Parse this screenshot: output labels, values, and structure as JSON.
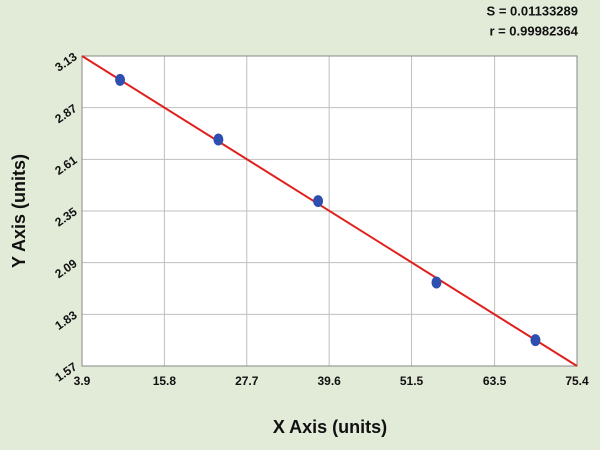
{
  "chart_data": {
    "type": "scatter",
    "xlabel": "X Axis (units)",
    "ylabel": "Y Axis (units)",
    "annotations": [
      "S = 0.01133289",
      "r = 0.99982364"
    ],
    "series": [
      {
        "color": "#2f4fb0",
        "x": [
          9.4,
          23.6,
          38.0,
          55.1,
          69.4
        ],
        "values": [
          3.01,
          2.71,
          2.4,
          1.99,
          1.7
        ]
      }
    ],
    "fit": {
      "color": "#e0201c",
      "x": [
        3.9,
        75.4
      ],
      "values": [
        3.13,
        1.57
      ]
    },
    "xlim": [
      3.9,
      75.4
    ],
    "ylim": [
      1.57,
      3.13
    ],
    "xticks": [
      3.9,
      15.8,
      27.7,
      39.6,
      51.5,
      63.5,
      75.4
    ],
    "yticks": [
      1.57,
      1.83,
      2.09,
      2.35,
      2.61,
      2.87,
      3.13
    ],
    "grid": true
  }
}
